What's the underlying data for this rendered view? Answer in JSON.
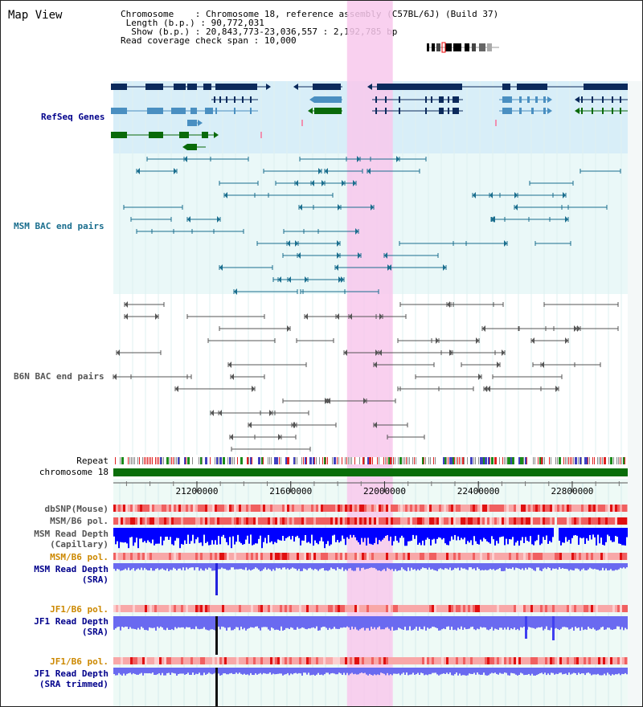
{
  "title": "Map View",
  "info": {
    "chromosome_key": "Chromosome    ",
    "chromosome_value": "Chromosome 18, reference assembly (C57BL/6J) (Build 37)",
    "length_key": "Length (b.p.)",
    "length_value": "90,772,031",
    "show_key": "Show (b.p.)",
    "show_value": "20,843,773-23,036,557 : 2,192,785 bp",
    "span_key": "Read coverage check span",
    "span_value": "10,000"
  },
  "tracks": {
    "refseq": "RefSeq Genes",
    "msm_bac": "MSM BAC end pairs",
    "b6n_bac": "B6N BAC end pairs",
    "repeat": "Repeat",
    "chromosome": "chromosome 18",
    "dbsnp": "dbSNP(Mouse)",
    "msm_b6_pol_1": "MSM/B6 pol.",
    "msm_read_depth_cap_1": "MSM Read Depth",
    "msm_read_depth_cap_2": "(Capillary)",
    "msm_b6_pol_2": "MSM/B6 pol.",
    "msm_read_depth_sra_1": "MSM Read Depth",
    "msm_read_depth_sra_2": "(SRA)",
    "jf1_b6_pol_1": "JF1/B6 pol.",
    "jf1_read_depth_sra_1": "JF1 Read Depth",
    "jf1_read_depth_sra_2": "(SRA)",
    "jf1_b6_pol_2": "JF1/B6 pol.",
    "jf1_read_depth_trim_1": "JF1 Read Depth",
    "jf1_read_depth_trim_2": "(SRA trimmed)"
  },
  "axis": {
    "ticks": [
      "21200000",
      "21600000",
      "22000000",
      "22400000",
      "22800000"
    ],
    "tick_values": [
      21200000,
      21600000,
      22000000,
      22400000,
      22800000
    ],
    "start": 20843773,
    "end": 23036557
  },
  "highlight": {
    "start": 21840000,
    "end": 22035000
  },
  "colors": {
    "gene_dark": "#0b2a5c",
    "gene_mid": "#4a8fc1",
    "gene_green": "#0a6a0a",
    "refseq_bg": "#d8eef8",
    "bac_msm": "#1a6e8e",
    "bac_b6n": "#555555",
    "bac_bg": "#eaf8f8",
    "highlight": "#f8c8ec",
    "chromosome": "#0a6e0a",
    "msm_depth": "#0000ff",
    "sra_depth": "#6a6af0",
    "label_blue": "#00008b",
    "label_orange": "#cc8800",
    "label_teal": "#1a6e8e"
  }
}
